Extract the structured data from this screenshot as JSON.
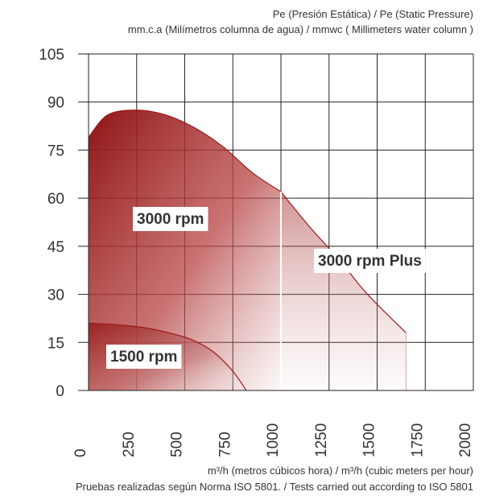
{
  "chart_data": {
    "type": "area",
    "ylabel_line1": "Pe (Presión Estática) /  Pe (Static Pressure)",
    "ylabel_line2": "mm.c.a (Milímetros columna de agua) / mmwc ( Millimeters water column )",
    "xlabel": "m³/h (metros cúbicos hora) / m³/h (cubic meters per hour)",
    "note": "Pruebas realizadas según Norma ISO 5801. / Tests carried out according to ISO 5801",
    "xlim": [
      0,
      2000
    ],
    "ylim": [
      0,
      105
    ],
    "x_ticks": [
      "0",
      "250",
      "500",
      "750",
      "1000",
      "1250",
      "1500",
      "1750",
      "2000"
    ],
    "y_ticks": [
      "0",
      "15",
      "30",
      "45",
      "60",
      "75",
      "90",
      "105"
    ],
    "grid": true,
    "series": [
      {
        "name": "3000 rpm",
        "color": "#9b1c1c",
        "x": [
          0,
          100,
          250,
          400,
          550,
          700,
          850,
          1000
        ],
        "y": [
          79,
          86,
          87.5,
          86,
          82,
          76,
          68,
          62
        ]
      },
      {
        "name": "3000 rpm Plus",
        "color": "#9b1c1c",
        "x": [
          1000,
          1150,
          1300,
          1450,
          1650
        ],
        "y": [
          62,
          51,
          41,
          30,
          18
        ]
      },
      {
        "name": "1500  rpm",
        "color": "#9b1c1c",
        "x": [
          0,
          150,
          300,
          450,
          550,
          650,
          750,
          820
        ],
        "y": [
          21,
          20.5,
          19.5,
          17.5,
          15.5,
          12,
          6,
          0
        ]
      }
    ]
  }
}
